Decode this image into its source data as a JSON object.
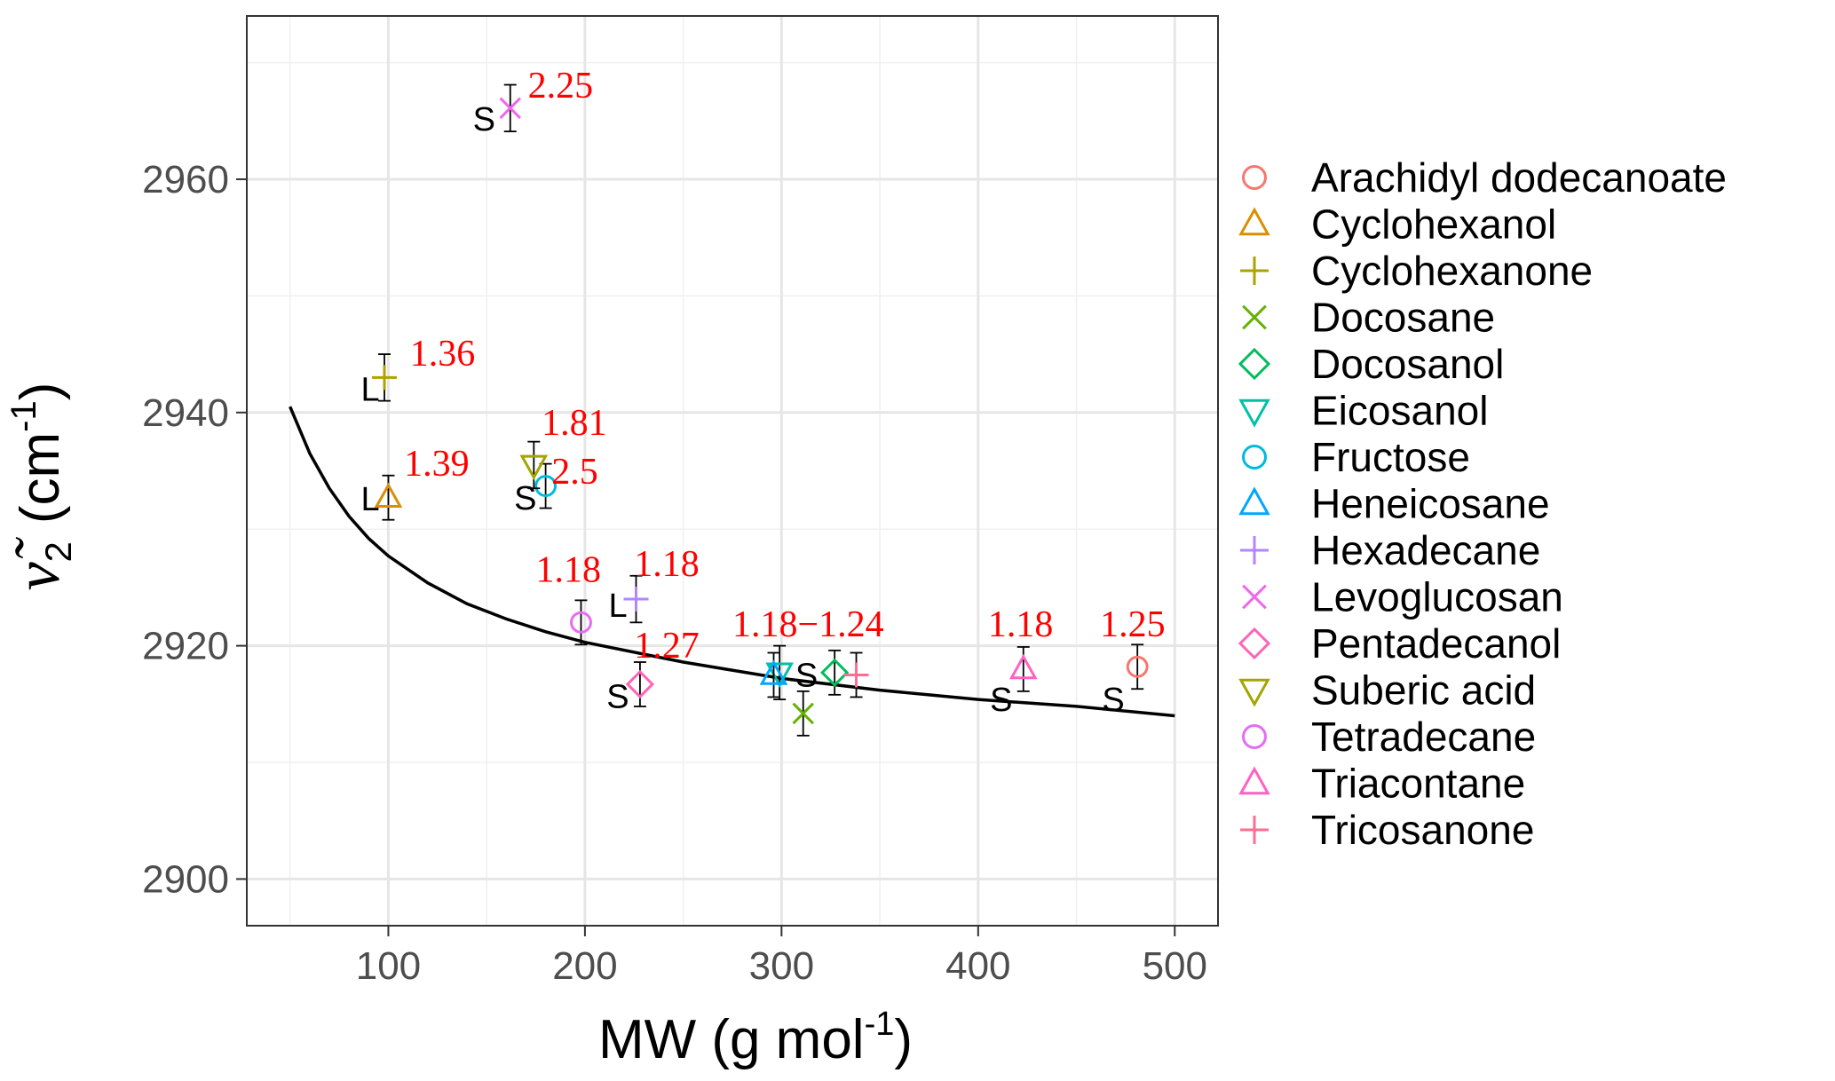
{
  "chart_data": {
    "type": "scatter",
    "xlabel": "MW (g mol",
    "xlabel_sup": "-1",
    "xlabel_end": ")",
    "ylabel_main": "ν̃",
    "ylabel_sub": "2",
    "ylabel_unit": "(cm",
    "ylabel_sup": "-1",
    "ylabel_end": ")",
    "xlim": [
      28,
      522
    ],
    "ylim": [
      2896,
      2974
    ],
    "x_ticks": [
      100,
      200,
      300,
      400,
      500
    ],
    "x_tick_labels": [
      "100",
      "200",
      "300",
      "400",
      "500"
    ],
    "y_ticks": [
      2900,
      2920,
      2940,
      2960
    ],
    "y_tick_labels": [
      "2900",
      "2920",
      "2940",
      "2960"
    ],
    "grid": true,
    "legend_position": "right",
    "series": [
      {
        "name": "Arachidyl dodecanoate",
        "color": "#F8766D",
        "shape": "circle",
        "x": 481,
        "y": 2918.2,
        "err": 1.9
      },
      {
        "name": "Cyclohexanol",
        "color": "#DB8E00",
        "shape": "triangle-up",
        "x": 100,
        "y": 2932.7,
        "err": 1.9
      },
      {
        "name": "Cyclohexanone",
        "color": "#AEA200",
        "shape": "plus",
        "x": 98,
        "y": 2943.0,
        "err": 2.0
      },
      {
        "name": "Docosane",
        "color": "#64B200",
        "shape": "cross",
        "x": 311,
        "y": 2914.2,
        "err": 1.9
      },
      {
        "name": "Docosanol",
        "color": "#00BD5C",
        "shape": "diamond",
        "x": 327,
        "y": 2917.7,
        "err": 1.9
      },
      {
        "name": "Eicosanol",
        "color": "#00C1A7",
        "shape": "triangle-down",
        "x": 299,
        "y": 2917.7,
        "err": 2.3
      },
      {
        "name": "Fructose",
        "color": "#00BADE",
        "shape": "circle",
        "x": 180,
        "y": 2933.7,
        "err": 1.9
      },
      {
        "name": "Heneicosane",
        "color": "#00A6FF",
        "shape": "triangle-up",
        "x": 296,
        "y": 2917.5,
        "err": 1.9
      },
      {
        "name": "Hexadecane",
        "color": "#B385FF",
        "shape": "plus",
        "x": 226,
        "y": 2924.0,
        "err": 2.0
      },
      {
        "name": "Levoglucosan",
        "color": "#EF67EB",
        "shape": "cross",
        "x": 162,
        "y": 2966.1,
        "err": 2.0
      },
      {
        "name": "Pentadecanol",
        "color": "#FF63B6",
        "shape": "diamond",
        "x": 228,
        "y": 2916.7,
        "err": 1.9
      },
      {
        "name": "Suberic acid",
        "color": "#A3A500",
        "shape": "triangle-down",
        "x": 174,
        "y": 2935.5,
        "err": 2.0
      },
      {
        "name": "Tetradecane",
        "color": "#E76BF3",
        "shape": "circle",
        "x": 198,
        "y": 2922.0,
        "err": 1.9
      },
      {
        "name": "Triacontane",
        "color": "#FF61C3",
        "shape": "triangle-up",
        "x": 423,
        "y": 2918.0,
        "err": 1.9
      },
      {
        "name": "Tricosanone",
        "color": "#FF6C91",
        "shape": "plus",
        "x": 338,
        "y": 2917.5,
        "err": 1.9
      }
    ],
    "fit_curve": {
      "description": "reciprocal fit",
      "x": [
        50,
        60,
        70,
        80,
        90,
        100,
        120,
        140,
        160,
        180,
        200,
        250,
        300,
        350,
        400,
        450,
        500
      ],
      "y": [
        2940.5,
        2936.5,
        2933.5,
        2931.1,
        2929.2,
        2927.7,
        2925.4,
        2923.6,
        2922.3,
        2921.2,
        2920.3,
        2918.6,
        2917.2,
        2916.2,
        2915.4,
        2914.8,
        2914.0
      ]
    },
    "annotations": [
      {
        "text": "2.25",
        "x": 171,
        "y": 2967.0
      },
      {
        "text": "S",
        "x": 143,
        "y": 2964.2,
        "kind": "phase"
      },
      {
        "text": "1.36",
        "x": 111,
        "y": 2944.0
      },
      {
        "text": "L",
        "x": 86,
        "y": 2941.0,
        "kind": "phase"
      },
      {
        "text": "1.39",
        "x": 108,
        "y": 2934.6
      },
      {
        "text": "L",
        "x": 86,
        "y": 2931.6,
        "kind": "phase"
      },
      {
        "text": "1.81",
        "x": 178,
        "y": 2938.1
      },
      {
        "text": "2.5",
        "x": 183,
        "y": 2933.9
      },
      {
        "text": "S",
        "x": 164,
        "y": 2931.7,
        "kind": "phase"
      },
      {
        "text": "1.18",
        "x": 175,
        "y": 2925.5
      },
      {
        "text": "1.18",
        "x": 225,
        "y": 2926.0
      },
      {
        "text": "L",
        "x": 212,
        "y": 2922.5,
        "kind": "phase"
      },
      {
        "text": "1.27",
        "x": 225,
        "y": 2919.0
      },
      {
        "text": "S",
        "x": 211,
        "y": 2914.7,
        "kind": "phase"
      },
      {
        "text": "1.18−1.24",
        "x": 275,
        "y": 2920.8
      },
      {
        "text": "S",
        "x": 307,
        "y": 2916.5,
        "kind": "phase"
      },
      {
        "text": "1.18",
        "x": 405,
        "y": 2920.8
      },
      {
        "text": "S",
        "x": 406,
        "y": 2914.4,
        "kind": "phase"
      },
      {
        "text": "1.25",
        "x": 462,
        "y": 2920.8
      },
      {
        "text": "S",
        "x": 463,
        "y": 2914.4,
        "kind": "phase"
      }
    ]
  }
}
